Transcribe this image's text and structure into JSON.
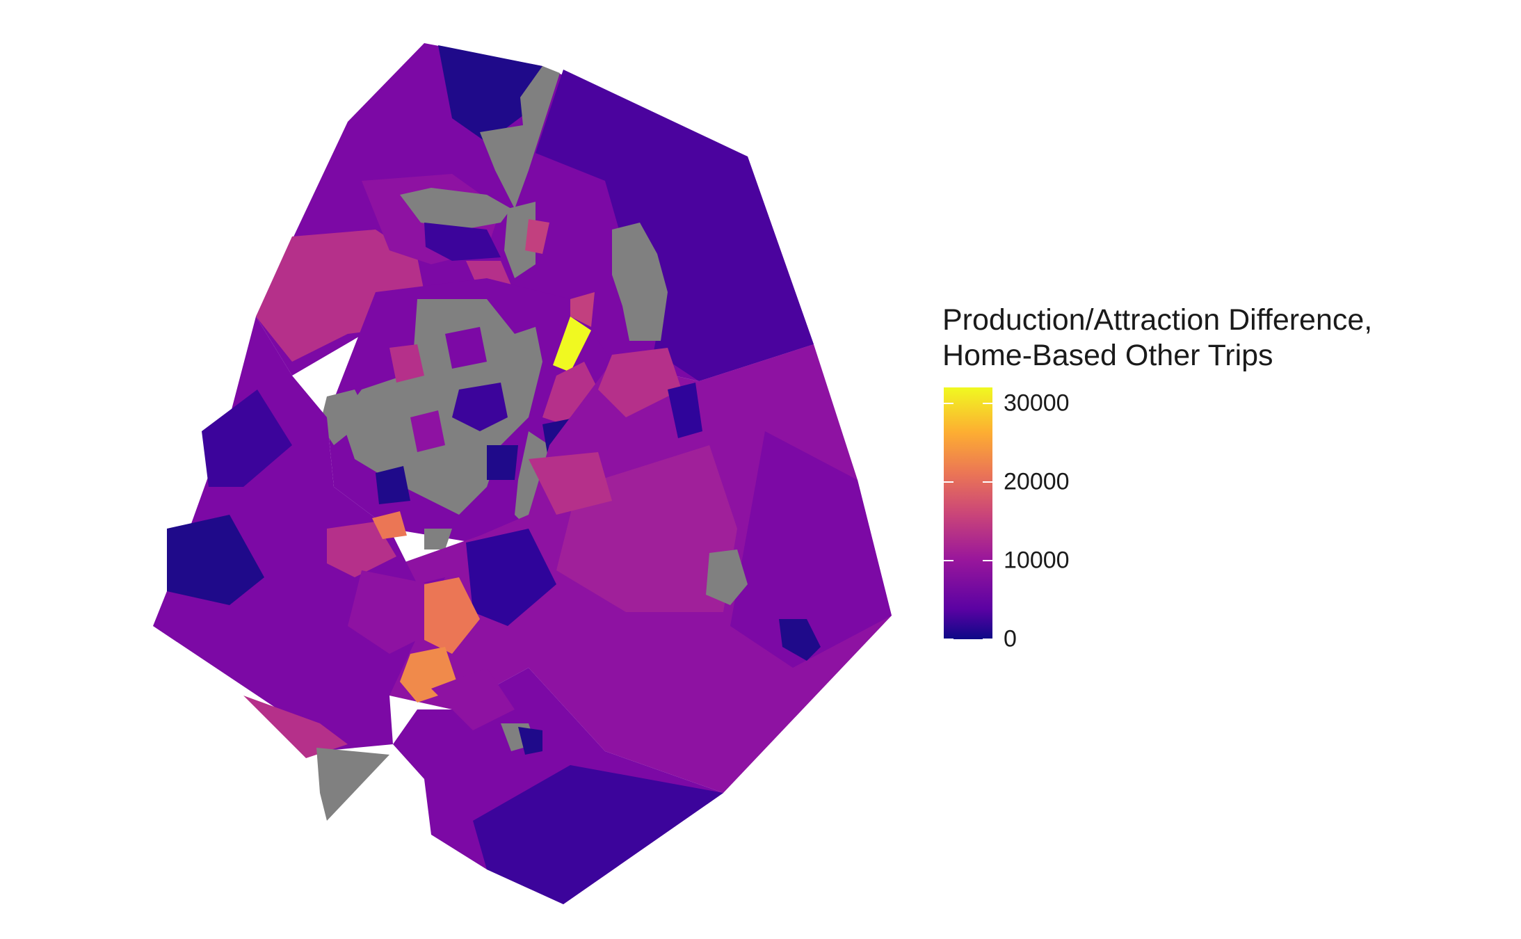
{
  "legend": {
    "title_line1": "Production/Attraction Difference,",
    "title_line2": "Home-Based Other Trips",
    "scale_min": 0,
    "scale_max": 32000,
    "ticks": [
      "0",
      "10000",
      "20000",
      "30000"
    ],
    "tick_values": [
      0,
      10000,
      20000,
      30000
    ],
    "palette": "plasma"
  },
  "colors": {
    "no_data": "#808080",
    "low": "#0d0887",
    "high": "#f0f921"
  }
}
